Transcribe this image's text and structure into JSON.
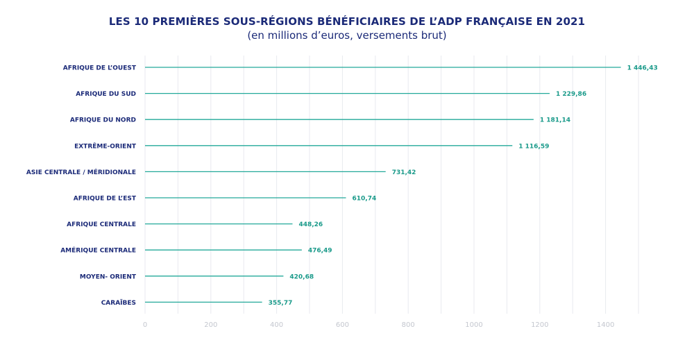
{
  "colors": {
    "title": "#1b2a78",
    "bar": "#23a99a",
    "value_label": "#1a9a8a",
    "category_label": "#1b2a78",
    "grid": "#e8eaef",
    "tick": "#c4c7cf"
  },
  "chart_data": {
    "type": "bar",
    "orientation": "horizontal",
    "title": "LES 10 PREMIÈRES SOUS-RÉGIONS BÉNÉFICIAIRES DE L’ADP FRANÇAISE EN 2021",
    "subtitle": "(en millions d’euros, versements brut)",
    "categories": [
      "AFRIQUE DE L’OUEST",
      "AFRIQUE DU SUD",
      "AFRIQUE DU NORD",
      "EXTRÊME-ORIENT",
      "ASIE CENTRALE / MÉRIDIONALE",
      "AFRIQUE DE L’EST",
      "AFRIQUE CENTRALE",
      "AMÉRIQUE CENTRALE",
      "MOYEN- ORIENT",
      "CARAÏBES"
    ],
    "values": [
      1446.43,
      1229.86,
      1181.14,
      1116.59,
      731.42,
      610.74,
      448.26,
      476.49,
      420.68,
      355.77
    ],
    "value_labels": [
      "1 446,43",
      "1 229,86",
      "1 181,14",
      "1 116,59",
      "731,42",
      "610,74",
      "448,26",
      "476,49",
      "420,68",
      "355,77"
    ],
    "x_ticks": [
      0,
      200,
      400,
      600,
      800,
      1000,
      1200,
      1400
    ],
    "x_tick_labels": [
      "0",
      "200",
      "400",
      "600",
      "800",
      "1000",
      "1200",
      "1400"
    ],
    "xlim": [
      0,
      1500
    ],
    "grid": true,
    "xlabel": "",
    "ylabel": ""
  }
}
